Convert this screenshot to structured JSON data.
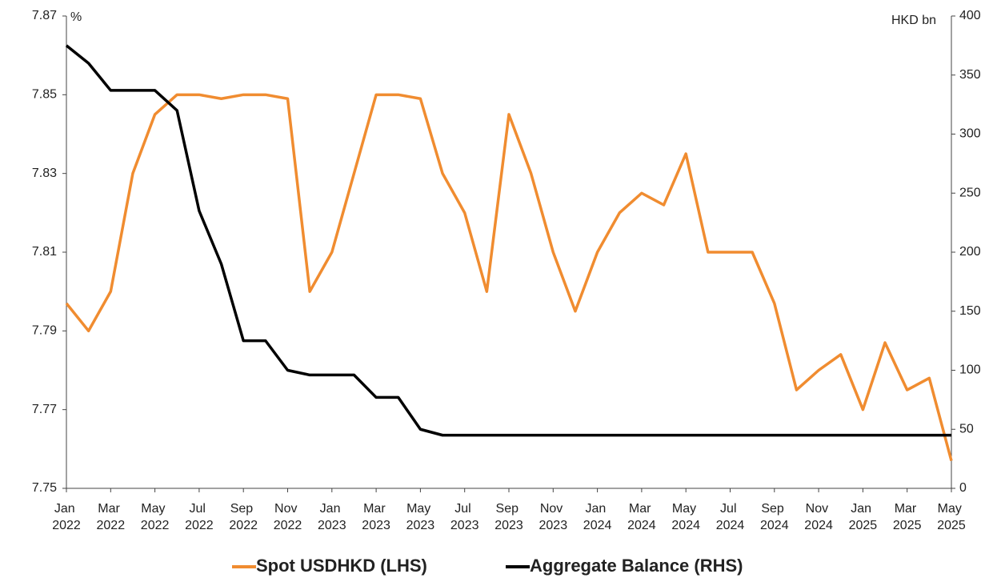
{
  "chart_data": {
    "type": "line",
    "y_label": "%",
    "y2_label": "HKD bn",
    "x": [
      "2022-01",
      "2022-02",
      "2022-03",
      "2022-04",
      "2022-05",
      "2022-06",
      "2022-07",
      "2022-08",
      "2022-09",
      "2022-10",
      "2022-11",
      "2022-12",
      "2023-01",
      "2023-02",
      "2023-03",
      "2023-04",
      "2023-05",
      "2023-06",
      "2023-07",
      "2023-08",
      "2023-09",
      "2023-10",
      "2023-11",
      "2023-12",
      "2024-01",
      "2024-02",
      "2024-03",
      "2024-04",
      "2024-05",
      "2024-06",
      "2024-07",
      "2024-08",
      "2024-09",
      "2024-10",
      "2024-11",
      "2024-12",
      "2025-01",
      "2025-02",
      "2025-03",
      "2025-04",
      "2025-05"
    ],
    "xticks": [
      {
        "value": "2022-01",
        "label": "Jan 2022"
      },
      {
        "value": "2022-03",
        "label": "Mar 2022"
      },
      {
        "value": "2022-05",
        "label": "May 2022"
      },
      {
        "value": "2022-07",
        "label": "Jul 2022"
      },
      {
        "value": "2022-09",
        "label": "Sep 2022"
      },
      {
        "value": "2022-11",
        "label": "Nov 2022"
      },
      {
        "value": "2023-01",
        "label": "Jan 2023"
      },
      {
        "value": "2023-03",
        "label": "Mar 2023"
      },
      {
        "value": "2023-05",
        "label": "May 2023"
      },
      {
        "value": "2023-07",
        "label": "Jul 2023"
      },
      {
        "value": "2023-09",
        "label": "Sep 2023"
      },
      {
        "value": "2023-11",
        "label": "Nov 2023"
      },
      {
        "value": "2024-01",
        "label": "Jan 2024"
      },
      {
        "value": "2024-03",
        "label": "Mar 2024"
      },
      {
        "value": "2024-05",
        "label": "May 2024"
      },
      {
        "value": "2024-07",
        "label": "Jul 2024"
      },
      {
        "value": "2024-09",
        "label": "Sep 2024"
      },
      {
        "value": "2024-11",
        "label": "Nov 2024"
      },
      {
        "value": "2025-01",
        "label": "Jan 2025"
      },
      {
        "value": "2025-03",
        "label": "Mar 2025"
      },
      {
        "value": "2025-05",
        "label": "May 2025"
      }
    ],
    "ylim": [
      7.75,
      7.87
    ],
    "yticks": [
      7.75,
      7.77,
      7.79,
      7.81,
      7.83,
      7.85,
      7.87
    ],
    "y2lim": [
      0,
      400
    ],
    "y2ticks": [
      0,
      50,
      100,
      150,
      200,
      250,
      300,
      350,
      400
    ],
    "series": [
      {
        "name": "Spot USDHKD (LHS)",
        "color": "#f08c30",
        "values": [
          7.797,
          7.79,
          7.8,
          7.83,
          7.845,
          7.85,
          7.85,
          7.849,
          7.85,
          7.85,
          7.849,
          7.8,
          7.81,
          7.83,
          7.85,
          7.85,
          7.849,
          7.83,
          7.82,
          7.8,
          7.845,
          7.83,
          7.81,
          7.795,
          7.81,
          7.82,
          7.825,
          7.822,
          7.835,
          7.81,
          7.81,
          7.81,
          7.797,
          7.775,
          7.78,
          7.784,
          7.77,
          7.787,
          7.775,
          7.778,
          7.757
        ]
      },
      {
        "name": "Aggregate Balance (RHS)",
        "color": "#000000",
        "axis": "y2",
        "values": [
          375,
          360,
          337,
          337,
          337,
          320,
          235,
          190,
          125,
          125,
          100,
          96,
          96,
          96,
          77,
          77,
          50,
          45,
          45,
          45,
          45,
          45,
          45,
          45,
          45,
          45,
          45,
          45,
          45,
          45,
          45,
          45,
          45,
          45,
          45,
          45,
          45,
          45,
          45,
          45,
          45
        ]
      }
    ]
  }
}
